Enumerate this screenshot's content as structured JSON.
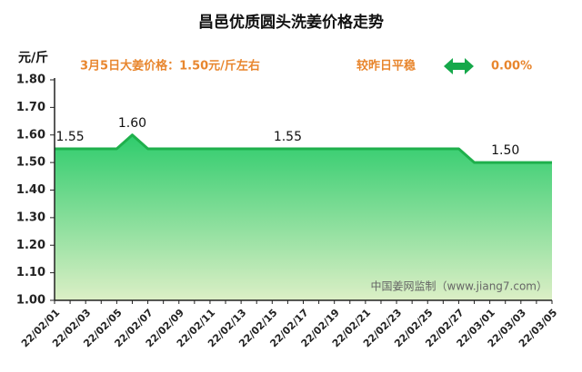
{
  "chart_data": {
    "type": "area",
    "title": "昌邑优质圆头洗姜价格走势",
    "y_label": "元/斤",
    "annotations": {
      "price_note": "3月5日大姜价格：1.50元/斤左右",
      "change_label": "较昨日平稳",
      "change_value": "0.00%",
      "watermark": "中国姜网监制（www.jiang7.com）"
    },
    "categories": [
      "22/02/01",
      null,
      "22/02/03",
      null,
      "22/02/05",
      null,
      "22/02/07",
      null,
      "22/02/09",
      null,
      "22/02/11",
      null,
      "22/02/13",
      null,
      "22/02/15",
      null,
      "22/02/17",
      null,
      "22/02/19",
      null,
      "22/02/21",
      null,
      "22/02/23",
      null,
      "22/02/25",
      null,
      "22/02/27",
      null,
      "22/03/01",
      null,
      "22/03/03",
      null,
      "22/03/05"
    ],
    "values": [
      1.55,
      1.55,
      1.55,
      1.55,
      1.55,
      1.6,
      1.55,
      1.55,
      1.55,
      1.55,
      1.55,
      1.55,
      1.55,
      1.55,
      1.55,
      1.55,
      1.55,
      1.55,
      1.55,
      1.55,
      1.55,
      1.55,
      1.55,
      1.55,
      1.55,
      1.55,
      1.55,
      1.5,
      1.5,
      1.5,
      1.5,
      1.5,
      1.5
    ],
    "value_labels": [
      null,
      "1.55",
      null,
      null,
      null,
      "1.60",
      null,
      null,
      null,
      null,
      null,
      null,
      null,
      null,
      null,
      "1.55",
      null,
      null,
      null,
      null,
      null,
      null,
      null,
      null,
      null,
      null,
      null,
      null,
      null,
      "1.50",
      null,
      null,
      null
    ],
    "color": "#1fb04c",
    "ylim": [
      1,
      1.8
    ],
    "yticks": [
      {
        "value": 1,
        "label": "1.00"
      },
      {
        "value": 1.1,
        "label": "1.10"
      },
      {
        "value": 1.2,
        "label": "1.20"
      },
      {
        "value": 1.3,
        "label": "1.30"
      },
      {
        "value": 1.4,
        "label": "1.40"
      },
      {
        "value": 1.5,
        "label": "1.50"
      },
      {
        "value": 1.6,
        "label": "1.60"
      },
      {
        "value": 1.7,
        "label": "1.70"
      },
      {
        "value": 1.8,
        "label": "1.80"
      }
    ],
    "grid": false
  }
}
